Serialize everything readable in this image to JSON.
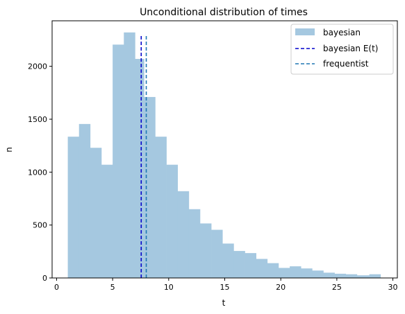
{
  "chart_data": {
    "type": "bar",
    "title": "Unconditional distribution of times",
    "xlabel": "t",
    "ylabel": "n",
    "xlim": [
      -0.4,
      30.4
    ],
    "ylim": [
      0,
      2430
    ],
    "xticks": [
      0,
      5,
      10,
      15,
      20,
      25,
      30
    ],
    "yticks": [
      0,
      500,
      1000,
      1500,
      2000
    ],
    "grid": false,
    "legend_position": "top-right",
    "histogram": {
      "name": "bayesian",
      "color": "#a5c8e0",
      "bin_edges": [
        1.0,
        2.0,
        3.0,
        4.0,
        5.0,
        6.0,
        7.0,
        7.8,
        8.8,
        9.8,
        10.8,
        11.8,
        12.8,
        13.8,
        14.8,
        15.8,
        16.8,
        17.8,
        18.8,
        19.8,
        20.8,
        21.8,
        22.8,
        23.8,
        24.8,
        25.8,
        26.8,
        27.9,
        28.9
      ],
      "counts": [
        1335,
        1455,
        1230,
        1070,
        2205,
        2320,
        2070,
        1710,
        1335,
        1070,
        820,
        650,
        515,
        455,
        325,
        255,
        235,
        180,
        140,
        95,
        110,
        90,
        70,
        50,
        40,
        35,
        25,
        35
      ]
    },
    "vlines": [
      {
        "name": "bayesian E(t)",
        "x": 7.55,
        "ymax": 2305,
        "color": "#0000cc",
        "style": "dashed"
      },
      {
        "name": "frequentist",
        "x": 8.0,
        "ymax": 2305,
        "color": "#1f77b4",
        "style": "dashed"
      }
    ]
  }
}
